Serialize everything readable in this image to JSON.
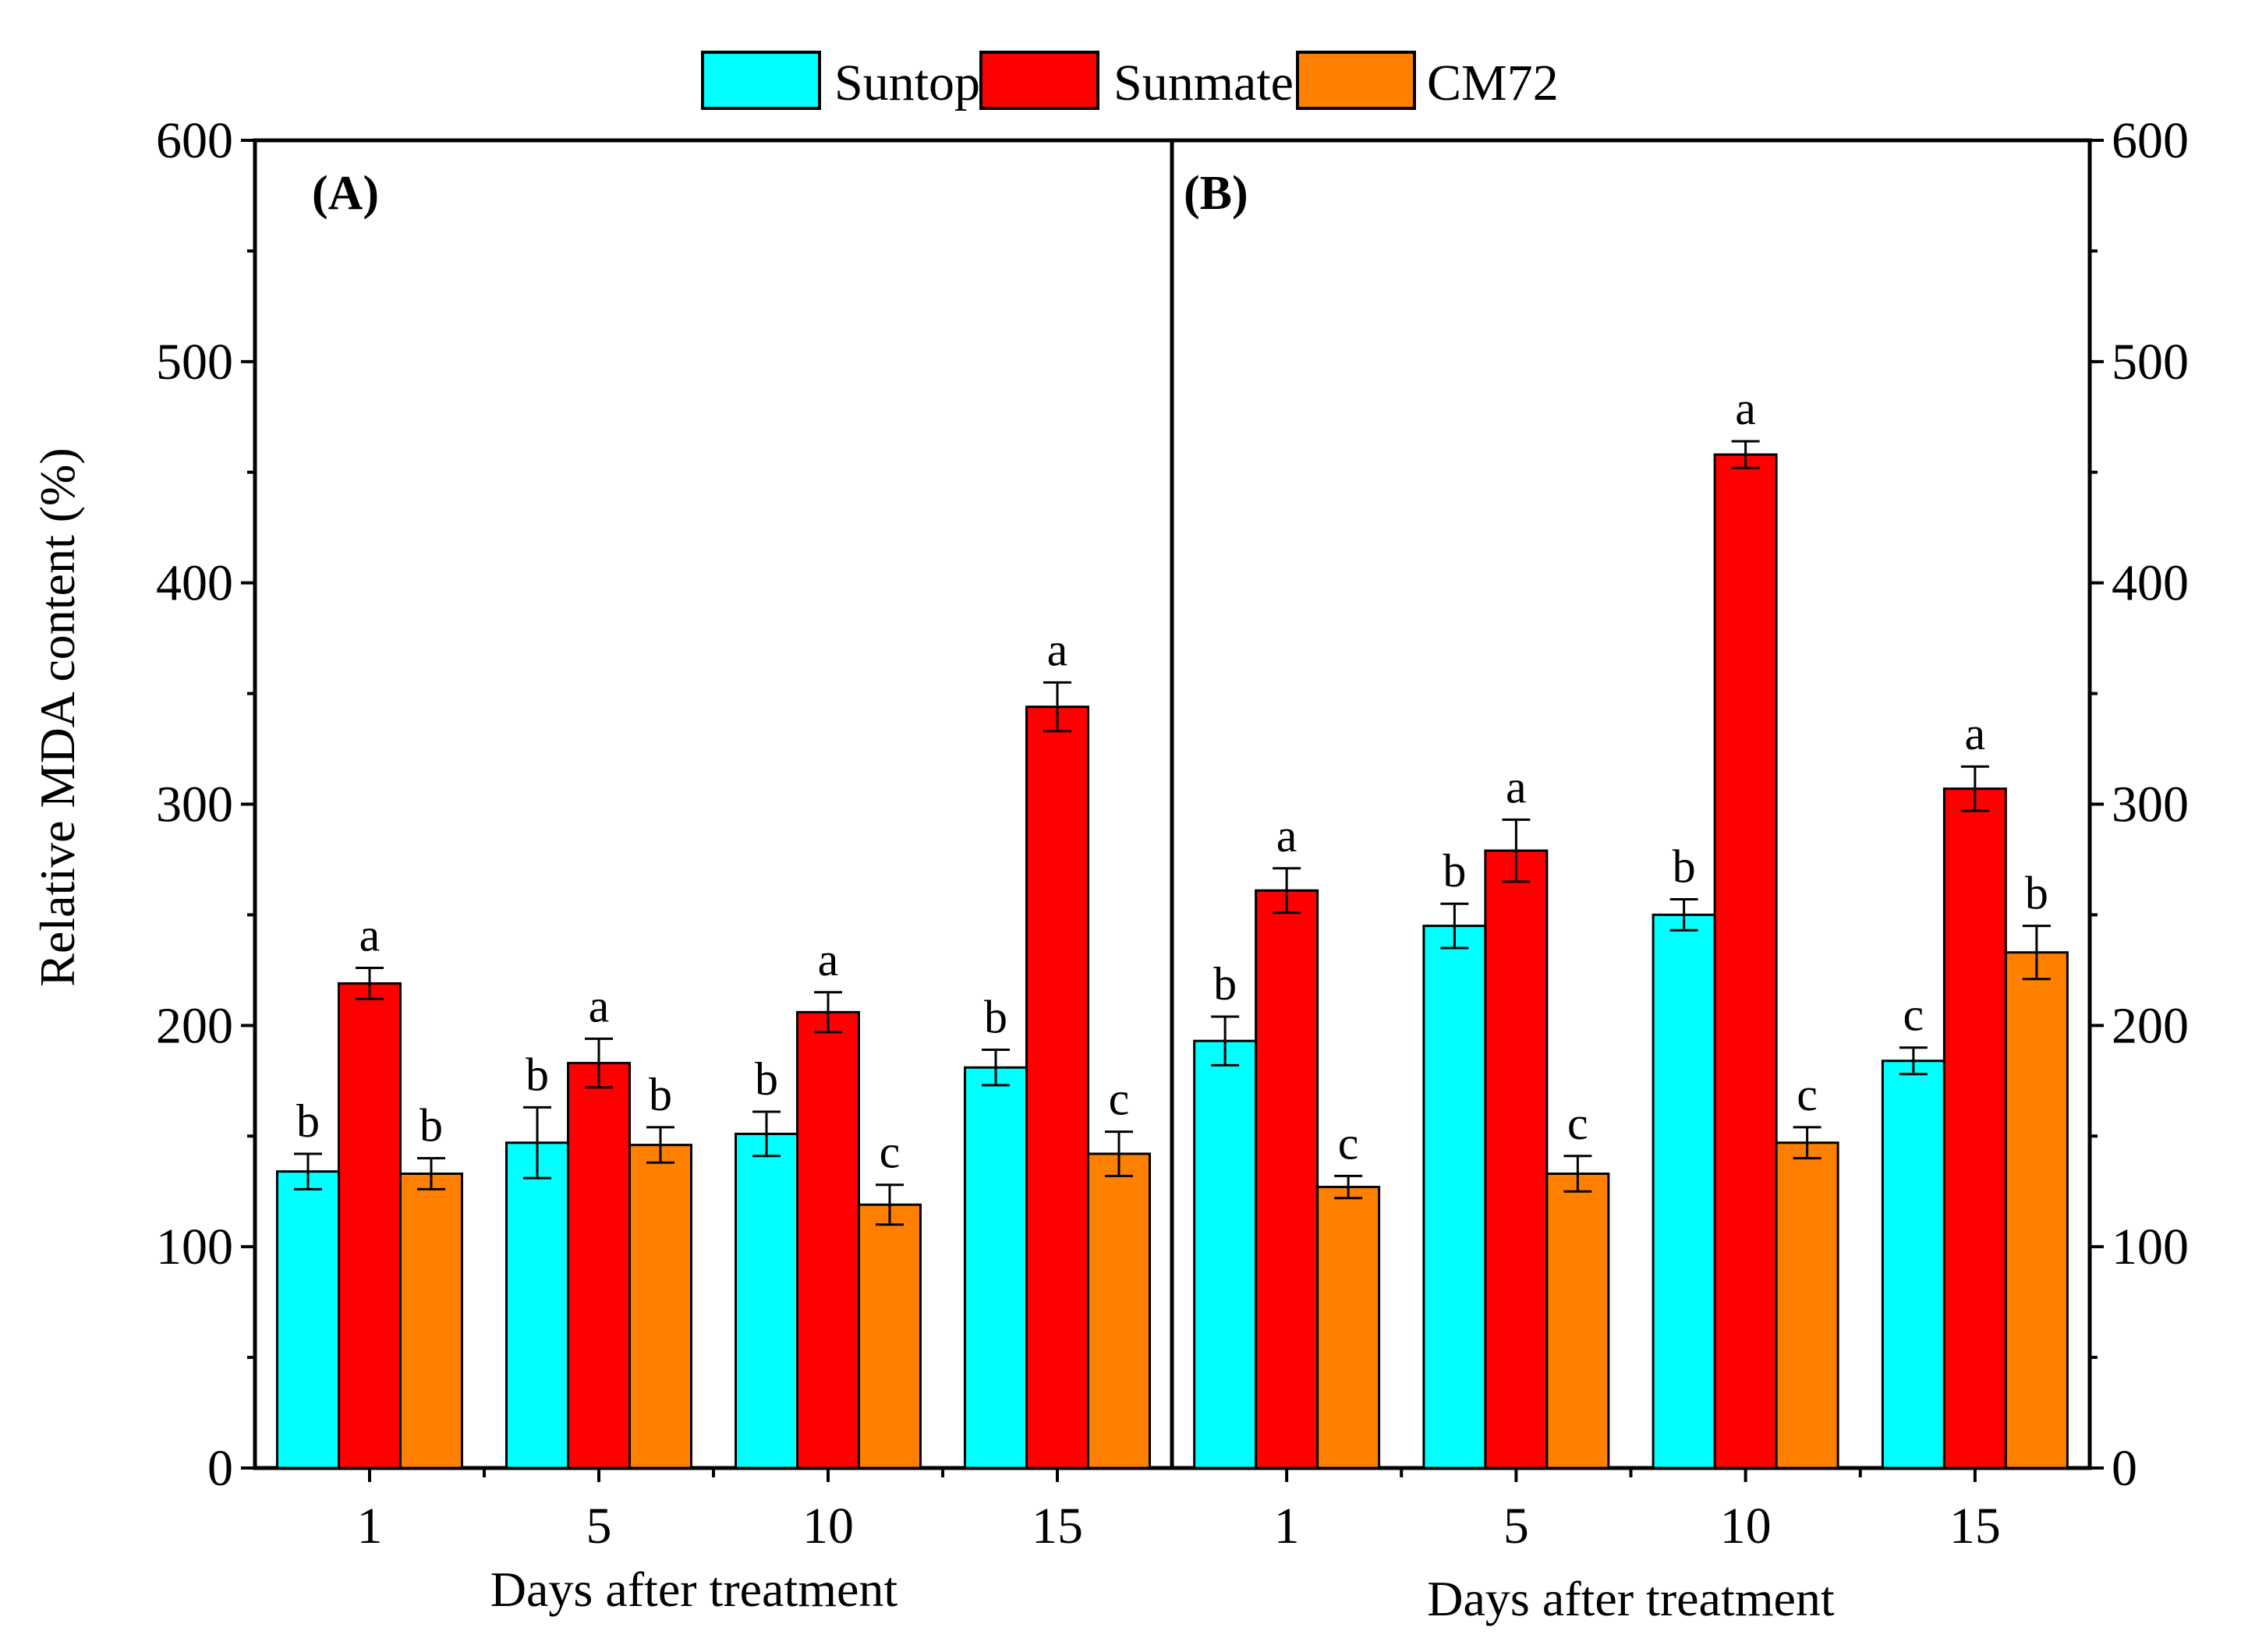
{
  "chart_data": {
    "type": "bar",
    "ylabel": "Relative MDA content (%)",
    "ylim": [
      0,
      600
    ],
    "yticks": [
      0,
      100,
      200,
      300,
      400,
      500,
      600
    ],
    "legend": {
      "placement": "top-center",
      "entries": [
        {
          "name": "Suntop",
          "color": "#00FFFF"
        },
        {
          "name": "Sunmate",
          "color": "#FF0000"
        },
        {
          "name": "CM72",
          "color": "#FF8000"
        }
      ]
    },
    "panels": [
      {
        "label": "(A)",
        "xlabel": "Days after treatment",
        "categories": [
          "1",
          "5",
          "10",
          "15"
        ],
        "series": [
          {
            "name": "Suntop",
            "values": [
              134,
              147,
              151,
              181
            ],
            "errors": [
              8,
              16,
              10,
              8
            ],
            "letters": [
              "b",
              "b",
              "b",
              "b"
            ]
          },
          {
            "name": "Sunmate",
            "values": [
              219,
              183,
              206,
              344
            ],
            "errors": [
              7,
              11,
              9,
              11
            ],
            "letters": [
              "a",
              "a",
              "a",
              "a"
            ]
          },
          {
            "name": "CM72",
            "values": [
              133,
              146,
              119,
              142
            ],
            "errors": [
              7,
              8,
              9,
              10
            ],
            "letters": [
              "b",
              "b",
              "c",
              "c"
            ]
          }
        ]
      },
      {
        "label": "(B)",
        "xlabel": "Days after treatment",
        "categories": [
          "1",
          "5",
          "10",
          "15"
        ],
        "series": [
          {
            "name": "Suntop",
            "values": [
              193,
              245,
              250,
              184
            ],
            "errors": [
              11,
              10,
              7,
              6
            ],
            "letters": [
              "b",
              "b",
              "b",
              "c"
            ]
          },
          {
            "name": "Sunmate",
            "values": [
              261,
              279,
              458,
              307
            ],
            "errors": [
              10,
              14,
              6,
              10
            ],
            "letters": [
              "a",
              "a",
              "a",
              "a"
            ]
          },
          {
            "name": "CM72",
            "values": [
              127,
              133,
              147,
              233
            ],
            "errors": [
              5,
              8,
              7,
              12
            ],
            "letters": [
              "c",
              "c",
              "c",
              "b"
            ]
          }
        ]
      }
    ]
  }
}
